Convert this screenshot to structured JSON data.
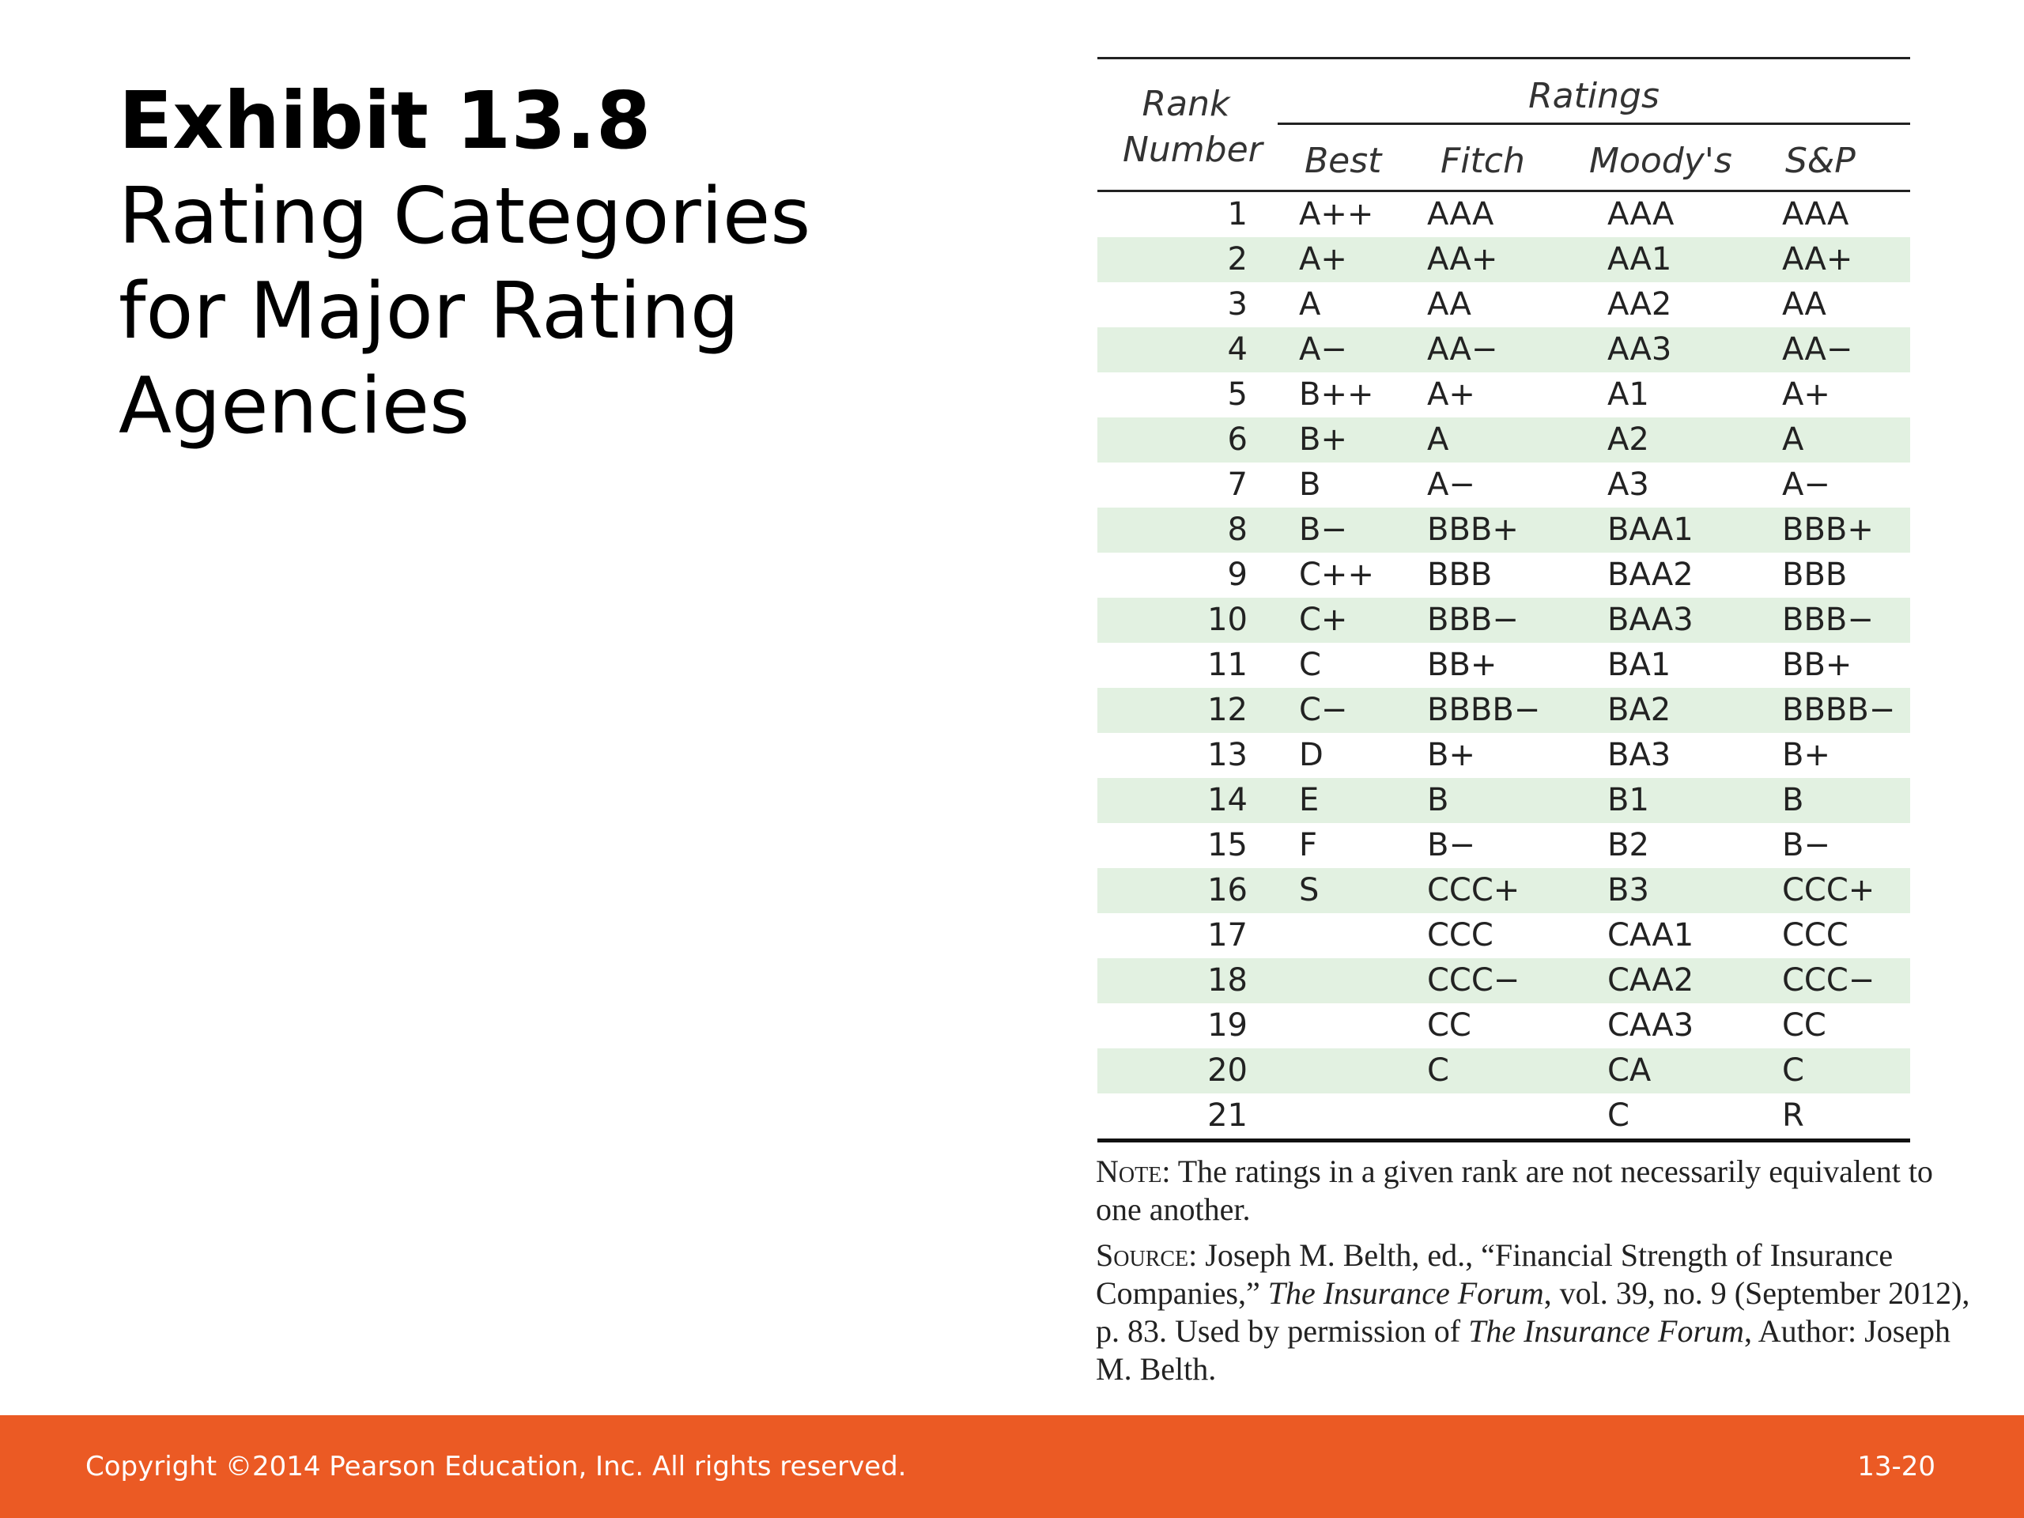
{
  "title": {
    "exhibit": "Exhibit 13.8",
    "heading": "Rating Categories for Major Rating Agencies"
  },
  "table": {
    "rank_header": "Rank Number",
    "group_header": "Ratings",
    "columns": [
      "Best",
      "Fitch",
      "Moody's",
      "S&P"
    ],
    "rows": [
      {
        "rank": "1",
        "best": "A++",
        "fitch": "AAA",
        "moodys": "AAA",
        "sp": "AAA"
      },
      {
        "rank": "2",
        "best": "A+",
        "fitch": "AA+",
        "moodys": "AA1",
        "sp": "AA+"
      },
      {
        "rank": "3",
        "best": "A",
        "fitch": "AA",
        "moodys": "AA2",
        "sp": "AA"
      },
      {
        "rank": "4",
        "best": "A−",
        "fitch": "AA−",
        "moodys": "AA3",
        "sp": "AA−"
      },
      {
        "rank": "5",
        "best": "B++",
        "fitch": "A+",
        "moodys": "A1",
        "sp": "A+"
      },
      {
        "rank": "6",
        "best": "B+",
        "fitch": "A",
        "moodys": "A2",
        "sp": "A"
      },
      {
        "rank": "7",
        "best": "B",
        "fitch": "A−",
        "moodys": "A3",
        "sp": "A−"
      },
      {
        "rank": "8",
        "best": "B−",
        "fitch": "BBB+",
        "moodys": "BAA1",
        "sp": "BBB+"
      },
      {
        "rank": "9",
        "best": "C++",
        "fitch": "BBB",
        "moodys": "BAA2",
        "sp": "BBB"
      },
      {
        "rank": "10",
        "best": "C+",
        "fitch": "BBB−",
        "moodys": "BAA3",
        "sp": "BBB−"
      },
      {
        "rank": "11",
        "best": "C",
        "fitch": "BB+",
        "moodys": "BA1",
        "sp": "BB+"
      },
      {
        "rank": "12",
        "best": "C−",
        "fitch": "BBBB−",
        "moodys": "BA2",
        "sp": "BBBB−"
      },
      {
        "rank": "13",
        "best": "D",
        "fitch": "B+",
        "moodys": "BA3",
        "sp": "B+"
      },
      {
        "rank": "14",
        "best": "E",
        "fitch": "B",
        "moodys": "B1",
        "sp": "B"
      },
      {
        "rank": "15",
        "best": "F",
        "fitch": "B−",
        "moodys": "B2",
        "sp": "B−"
      },
      {
        "rank": "16",
        "best": "S",
        "fitch": "CCC+",
        "moodys": "B3",
        "sp": "CCC+"
      },
      {
        "rank": "17",
        "best": "",
        "fitch": "CCC",
        "moodys": "CAA1",
        "sp": "CCC"
      },
      {
        "rank": "18",
        "best": "",
        "fitch": "CCC−",
        "moodys": "CAA2",
        "sp": "CCC−"
      },
      {
        "rank": "19",
        "best": "",
        "fitch": "CC",
        "moodys": "CAA3",
        "sp": "CC"
      },
      {
        "rank": "20",
        "best": "",
        "fitch": "C",
        "moodys": "CA",
        "sp": "C"
      },
      {
        "rank": "21",
        "best": "",
        "fitch": "",
        "moodys": "C",
        "sp": "R"
      }
    ]
  },
  "note": {
    "label": "Note",
    "text": ": The ratings in a given rank are not necessarily equivalent to one another."
  },
  "source": {
    "label": "Source",
    "text_1": ": Joseph M. Belth, ed., “Financial Strength of Insurance Companies,” ",
    "publication_1": "The Insurance Forum",
    "text_2": ", vol. 39, no. 9 (September 2012), p. 83. Used by permission of ",
    "publication_2": "The Insurance Forum",
    "text_3": ", Author: Joseph M. Belth."
  },
  "footer": {
    "copyright": "Copyright ©2014 Pearson Education, Inc. All rights reserved.",
    "page_number": "13-20",
    "bar_color": "#eb5a24"
  },
  "colors": {
    "row_stripe": "#e2f1e1"
  }
}
